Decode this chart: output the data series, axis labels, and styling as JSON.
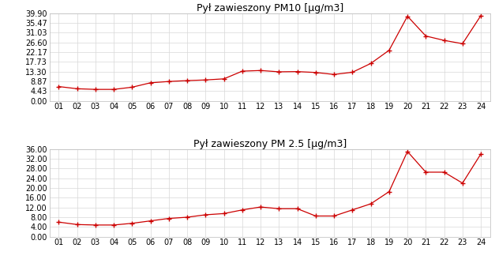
{
  "pm10": {
    "title": "Pył zawieszony PM10 [µg/m3]",
    "x": [
      1,
      2,
      3,
      4,
      5,
      6,
      7,
      8,
      9,
      10,
      11,
      12,
      13,
      14,
      15,
      16,
      17,
      18,
      19,
      20,
      21,
      22,
      23,
      24
    ],
    "y": [
      6.5,
      5.5,
      5.2,
      5.2,
      6.2,
      8.2,
      8.8,
      9.2,
      9.5,
      10.0,
      13.5,
      13.8,
      13.2,
      13.3,
      12.9,
      12.0,
      13.0,
      17.0,
      23.0,
      38.5,
      29.5,
      27.5,
      26.0,
      38.8
    ],
    "yticks": [
      0.0,
      4.43,
      8.87,
      13.3,
      17.73,
      22.17,
      26.6,
      31.03,
      35.47,
      39.9
    ],
    "ylim": [
      0.0,
      39.9
    ]
  },
  "pm25": {
    "title": "Pył zawieszony PM 2.5 [µg/m3]",
    "x": [
      1,
      2,
      3,
      4,
      5,
      6,
      7,
      8,
      9,
      10,
      11,
      12,
      13,
      14,
      15,
      16,
      17,
      18,
      19,
      20,
      21,
      22,
      23,
      24
    ],
    "y": [
      6.0,
      5.0,
      4.8,
      4.8,
      5.5,
      6.5,
      7.5,
      8.0,
      9.0,
      9.5,
      11.0,
      12.2,
      11.5,
      11.5,
      8.5,
      8.5,
      11.0,
      13.5,
      18.5,
      35.0,
      26.5,
      26.5,
      22.0,
      34.0
    ],
    "yticks": [
      0.0,
      4.0,
      8.0,
      12.0,
      16.0,
      20.0,
      24.0,
      28.0,
      32.0,
      36.0
    ],
    "ylim": [
      0.0,
      36.0
    ]
  },
  "line_color": "#cc0000",
  "marker": "+",
  "markersize": 4,
  "markeredgewidth": 1.0,
  "linewidth": 0.9,
  "grid_color": "#d8d8d8",
  "bg_color": "#ffffff",
  "tick_fontsize": 7,
  "title_fontsize": 9,
  "xtick_labels": [
    "01",
    "02",
    "03",
    "04",
    "05",
    "06",
    "07",
    "08",
    "09",
    "10",
    "11",
    "12",
    "13",
    "14",
    "15",
    "16",
    "17",
    "18",
    "19",
    "20",
    "21",
    "22",
    "23",
    "24"
  ]
}
